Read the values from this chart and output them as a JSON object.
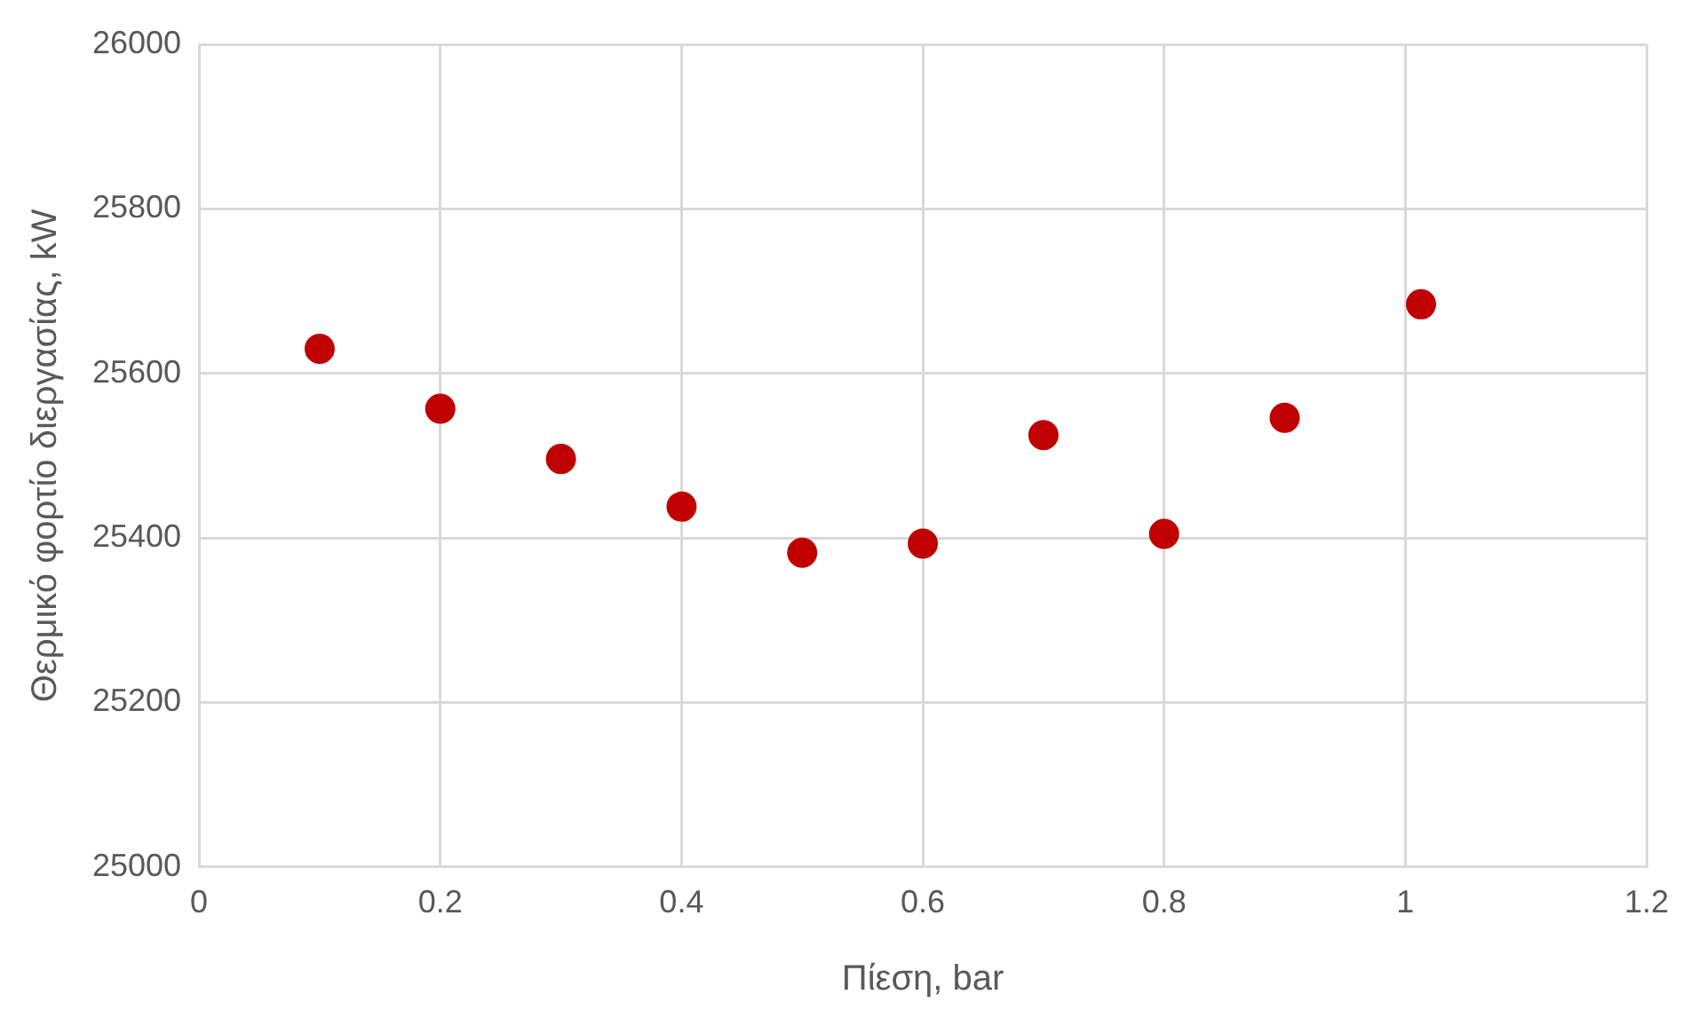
{
  "chart_data": {
    "type": "scatter",
    "xlabel": "Πίεση, bar",
    "ylabel": "Θερμικό φορτίο διεργασίας, kW",
    "x": [
      0.1,
      0.2,
      0.3,
      0.4,
      0.5,
      0.6,
      0.7,
      0.8,
      0.9,
      1.013
    ],
    "series": [
      {
        "color": "#c00000",
        "values": [
          25630,
          25557,
          25496,
          25438,
          25382,
          25393,
          25525,
          25405,
          25546,
          25684
        ]
      }
    ],
    "xlim": [
      0,
      1.2
    ],
    "xticks": [
      0,
      0.2,
      0.4,
      0.6,
      0.8,
      1,
      1.2
    ],
    "ylim": [
      25000,
      26000
    ],
    "yticks": [
      25000,
      25200,
      25400,
      25600,
      25800,
      26000
    ],
    "grid": true,
    "marker": "circle",
    "legend": false
  }
}
